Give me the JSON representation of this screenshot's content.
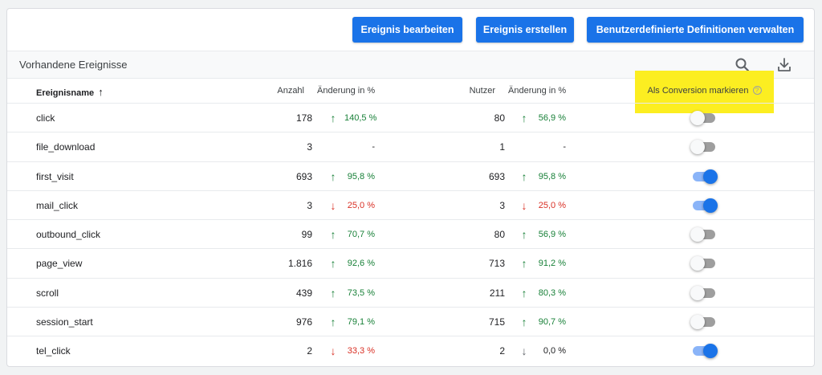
{
  "toolbar": {
    "edit_label": "Ereignis bearbeiten",
    "create_label": "Ereignis erstellen",
    "defs_label": "Benutzerdefinierte Definitionen verwalten"
  },
  "section": {
    "title": "Vorhandene Ereignisse",
    "search_icon": "search-icon",
    "download_icon": "download-icon"
  },
  "columns": {
    "name": "Ereignisname",
    "name_sort_icon": "↑",
    "count": "Anzahl",
    "change1": "Änderung in %",
    "users": "Nutzer",
    "change2": "Änderung in %",
    "conversion": "Als Conversion markieren",
    "help_icon": "?"
  },
  "highlight_color": "#fcee21",
  "accent_color": "#1a73e8",
  "rows": [
    {
      "name": "click",
      "count": "178",
      "c1_dir": "up",
      "c1": "140,5 %",
      "users": "80",
      "c2_dir": "up",
      "c2": "56,9 %",
      "conversion": false
    },
    {
      "name": "file_download",
      "count": "3",
      "c1_dir": "none",
      "c1": "-",
      "users": "1",
      "c2_dir": "none",
      "c2": "-",
      "conversion": false
    },
    {
      "name": "first_visit",
      "count": "693",
      "c1_dir": "up",
      "c1": "95,8 %",
      "users": "693",
      "c2_dir": "up",
      "c2": "95,8 %",
      "conversion": true
    },
    {
      "name": "mail_click",
      "count": "3",
      "c1_dir": "down",
      "c1": "25,0 %",
      "users": "3",
      "c2_dir": "down",
      "c2": "25,0 %",
      "conversion": true
    },
    {
      "name": "outbound_click",
      "count": "99",
      "c1_dir": "up",
      "c1": "70,7 %",
      "users": "80",
      "c2_dir": "up",
      "c2": "56,9 %",
      "conversion": false
    },
    {
      "name": "page_view",
      "count": "1.816",
      "c1_dir": "up",
      "c1": "92,6 %",
      "users": "713",
      "c2_dir": "up",
      "c2": "91,2 %",
      "conversion": false
    },
    {
      "name": "scroll",
      "count": "439",
      "c1_dir": "up",
      "c1": "73,5 %",
      "users": "211",
      "c2_dir": "up",
      "c2": "80,3 %",
      "conversion": false
    },
    {
      "name": "session_start",
      "count": "976",
      "c1_dir": "up",
      "c1": "79,1 %",
      "users": "715",
      "c2_dir": "up",
      "c2": "90,7 %",
      "conversion": false
    },
    {
      "name": "tel_click",
      "count": "2",
      "c1_dir": "down",
      "c1": "33,3 %",
      "users": "2",
      "c2_dir": "flat",
      "c2": "0,0 %",
      "conversion": true
    }
  ]
}
